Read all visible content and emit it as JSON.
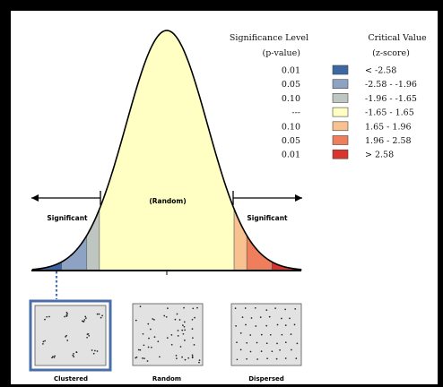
{
  "legend": {
    "significance_header_line1": "Significance Level",
    "significance_header_line2": "(p-value)",
    "critical_header_line1": "Critical Value",
    "critical_header_line2": "(z-score)",
    "rows": [
      {
        "p": "0.01",
        "z": "< -2.58",
        "color": "#3d67a3"
      },
      {
        "p": "0.05",
        "z": "-2.58 - -1.96",
        "color": "#8ea3c3"
      },
      {
        "p": "0.10",
        "z": "-1.96 - -1.65",
        "color": "#bfc5c0"
      },
      {
        "p": "---",
        "z": "-1.65 - 1.65",
        "color": "#ffffc4"
      },
      {
        "p": "0.10",
        "z": "1.65 - 1.96",
        "color": "#f7c190"
      },
      {
        "p": "0.05",
        "z": "1.96 - 2.58",
        "color": "#ef7e5c"
      },
      {
        "p": "0.01",
        "z": "> 2.58",
        "color": "#d7352d"
      }
    ]
  },
  "curve": {
    "center_label": "(Random)",
    "left_label": "Significant",
    "right_label": "Significant"
  },
  "patterns": [
    {
      "label": "Clustered",
      "selected": true
    },
    {
      "label": "Random",
      "selected": false
    },
    {
      "label": "Dispersed",
      "selected": false
    }
  ],
  "colors": {
    "frame": "#000000",
    "background": "#ffffff",
    "curve_fill_center": "#ffffc4",
    "selection_border": "#4a6fa8",
    "pattern_fill": "#e2e2e2"
  }
}
